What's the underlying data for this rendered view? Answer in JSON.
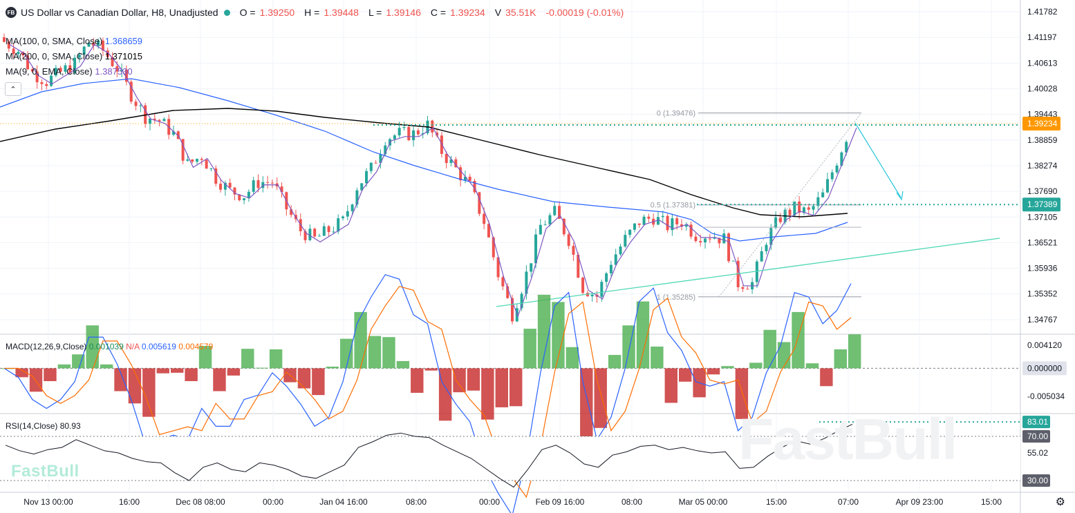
{
  "header": {
    "badge": "FB",
    "title": "US Dollar vs Canadian Dollar, H8, Unadjusted",
    "o_label": "O =",
    "o_value": "1.39250",
    "h_label": "H =",
    "h_value": "1.39448",
    "l_label": "L =",
    "l_value": "1.39146",
    "c_label": "C =",
    "c_value": "1.39234",
    "vol_label": "V",
    "vol_value": "35.51K",
    "change": "-0.00019 (-0.01%)"
  },
  "moving_averages": [
    {
      "label": "MA(100, 0, SMA, Close)",
      "value": "1.368659",
      "color": "#2962ff"
    },
    {
      "label": "MA(200, 0, SMA, Close)",
      "value": "1.371015",
      "color": "#000000"
    },
    {
      "label": "MA(9, 0, EMA, Close)",
      "value": "1.387530",
      "color": "#7e57c2"
    }
  ],
  "toggle_icon": "chevron-up-down-icon",
  "macd": {
    "label": "MACD(12,26,9,Close)",
    "hist": "0.001039",
    "na": "N/A",
    "macd": "0.005619",
    "signal": "0.004579"
  },
  "rsi": {
    "label": "RSI(14,Close)",
    "value": "80.93"
  },
  "watermark": {
    "small": "FastBull",
    "large": "FastBull"
  },
  "colors": {
    "up": "#26a69a",
    "down": "#ef5350",
    "ma100": "#2962ff",
    "ma200": "#000000",
    "ema9": "#7e57c2",
    "macd": "#2962ff",
    "signal": "#ff6d00",
    "trend": "#4ed8b4"
  },
  "chart_data": {
    "type": "candlestick",
    "symbol": "USDCAD",
    "timeframe": "H8",
    "price_axis": {
      "ticks": [
        "1.41782",
        "1.41197",
        "1.40613",
        "1.40028",
        "1.39443",
        "1.38859",
        "1.38274",
        "1.37690",
        "1.37105",
        "1.36521",
        "1.35936",
        "1.35352",
        "1.34767"
      ],
      "ylim": [
        1.3445,
        1.4205
      ],
      "current_price": "1.39234",
      "marker_price": "1.37389"
    },
    "time_axis": [
      "Nov 13 00:00",
      "16:00",
      "Dec 08 08:00",
      "00:00",
      "Jan 04 16:00",
      "08:00",
      "00:00",
      "Feb 09 16:00",
      "08:00",
      "Mar 05 00:00",
      "15:00",
      "07:00",
      "Apr 09 23:00",
      "15:00"
    ],
    "close_path": [
      1.411,
      1.409,
      1.404,
      1.402,
      1.404,
      1.406,
      1.411,
      1.409,
      1.405,
      1.399,
      1.394,
      1.393,
      1.39,
      1.383,
      1.385,
      1.38,
      1.377,
      1.376,
      1.379,
      1.379,
      1.373,
      1.368,
      1.366,
      1.368,
      1.37,
      1.378,
      1.382,
      1.389,
      1.39,
      1.39,
      1.392,
      1.386,
      1.382,
      1.378,
      1.37,
      1.358,
      1.349,
      1.358,
      1.369,
      1.372,
      1.366,
      1.355,
      1.353,
      1.361,
      1.366,
      1.37,
      1.371,
      1.369,
      1.37,
      1.367,
      1.367,
      1.366,
      1.356,
      1.356,
      1.366,
      1.371,
      1.373,
      1.372,
      1.376,
      1.384,
      1.392
    ],
    "fibonacci": [
      {
        "label": "0 (1.39476)",
        "price": 1.39476
      },
      {
        "label": "0.5 (1.37381)",
        "price": 1.37381
      },
      {
        "label": "1 (1.35285)",
        "price": 1.35285
      }
    ],
    "macd_axis": {
      "ticks": [
        "0.004120",
        "0.000000",
        "-0.005034"
      ],
      "ylim": [
        -0.008,
        0.006
      ]
    },
    "rsi_axis": {
      "ticks": [
        "83.01",
        "70.00",
        "55.02",
        "30.00"
      ],
      "ylim": [
        20,
        90
      ]
    },
    "rsi_path": [
      62,
      57,
      54,
      58,
      60,
      67,
      62,
      57,
      55,
      50,
      47,
      46,
      37,
      30,
      42,
      46,
      40,
      38,
      46,
      44,
      40,
      34,
      32,
      38,
      44,
      60,
      65,
      71,
      73,
      70,
      69,
      62,
      56,
      50,
      41,
      32,
      24,
      40,
      58,
      62,
      55,
      45,
      42,
      53,
      56,
      61,
      62,
      58,
      60,
      57,
      55,
      56,
      41,
      42,
      52,
      60,
      66,
      63,
      68,
      75,
      81
    ]
  }
}
